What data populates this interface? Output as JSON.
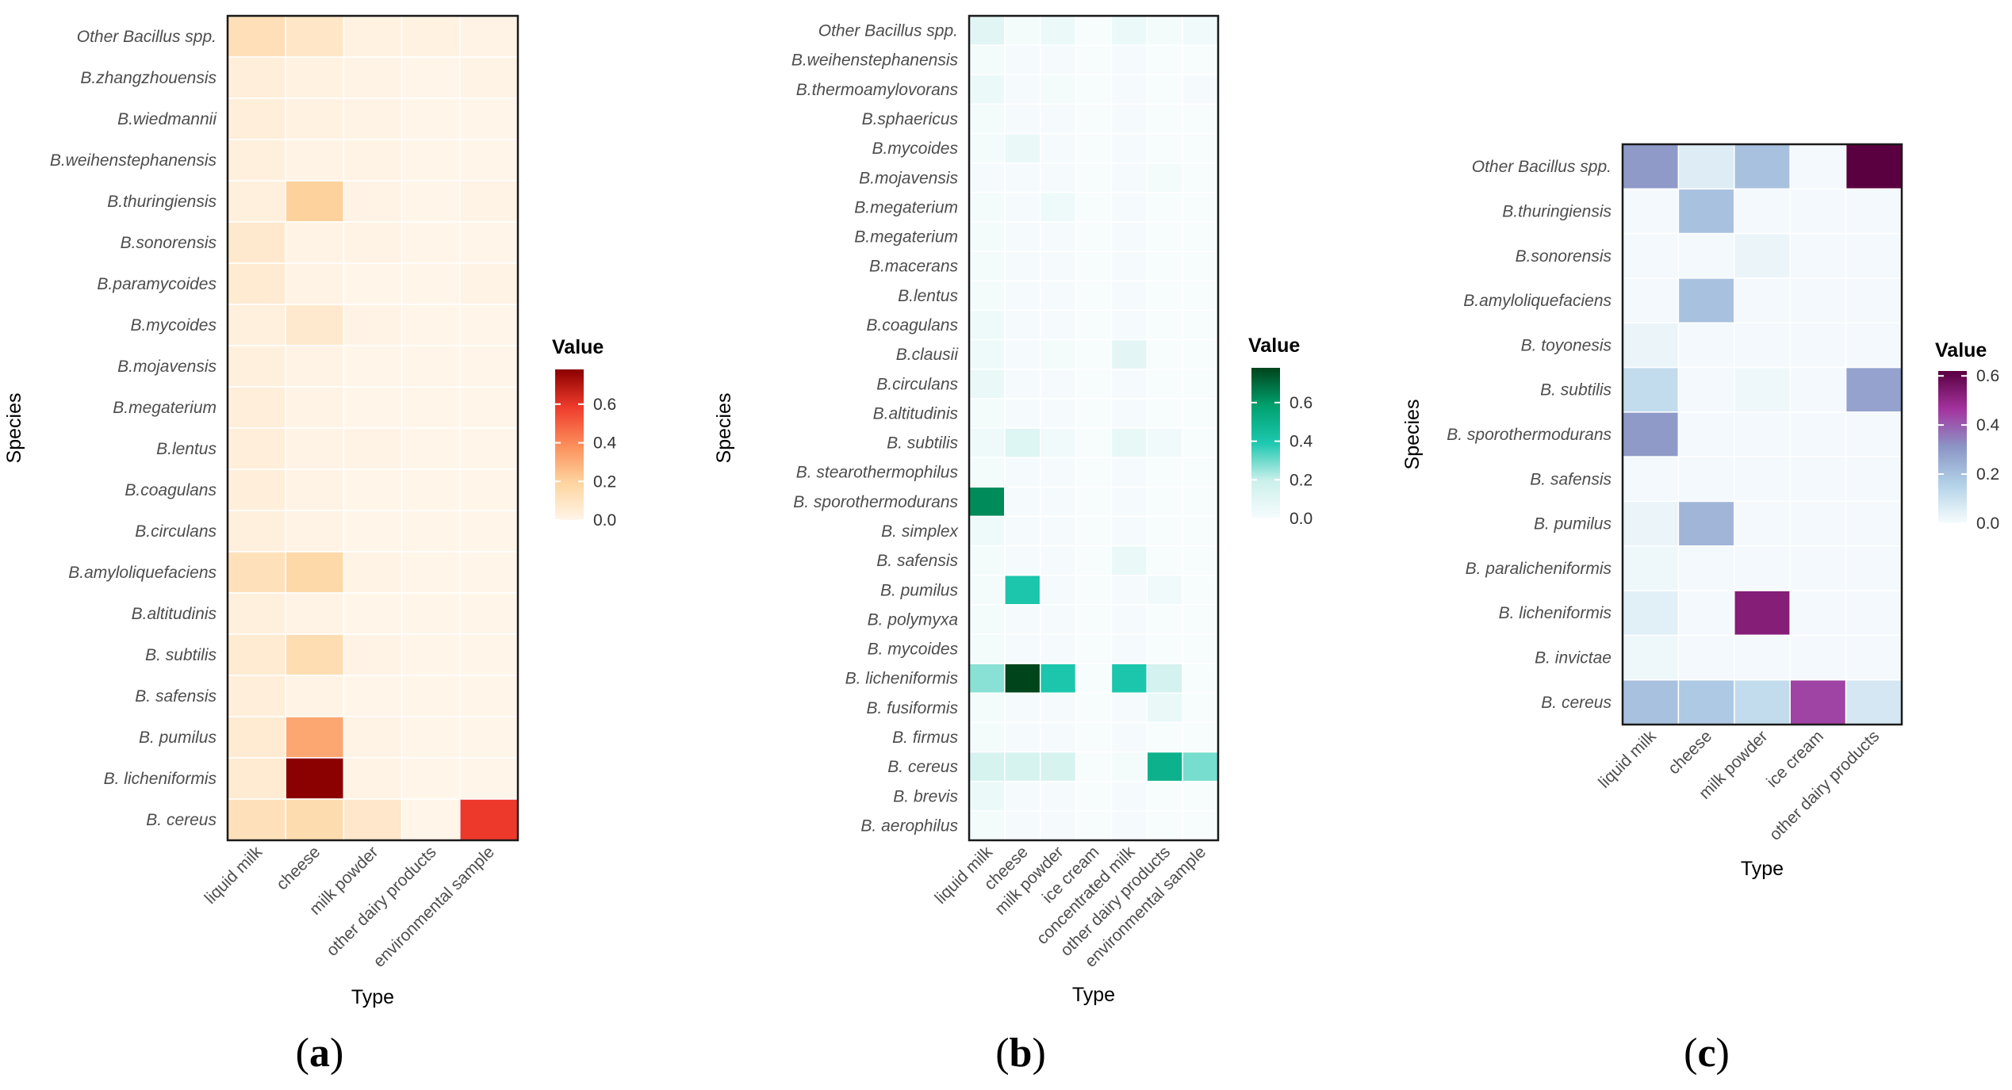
{
  "chart_data": [
    {
      "type": "heatmap",
      "panel_label": {
        "open": "(",
        "letter": "a",
        "close": ")"
      },
      "xlabel": "Type",
      "ylabel": "Species",
      "legend_title": "Value",
      "colorscale": [
        "#fff5e9",
        "#fdd49e",
        "#fc8d59",
        "#ef3b2c",
        "#8b0000"
      ],
      "value_range": [
        0,
        0.78
      ],
      "legend_ticks": [
        0.0,
        0.2,
        0.4,
        0.6
      ],
      "legend_tick_labels": [
        "0.0",
        "0.2",
        "0.4",
        "0.6"
      ],
      "x": [
        "liquid milk",
        "cheese",
        "milk powder",
        "other dairy products",
        "environmental sample"
      ],
      "y": [
        "Other Bacillus spp.",
        "B.zhangzhouensis",
        "B.wiedmannii",
        "B.weihenstephanensis",
        "B.thuringiensis",
        "B.sonorensis",
        "B.paramycoides",
        "B.mycoides",
        "B.mojavensis",
        "B.megaterium",
        "B.lentus",
        "B.coagulans",
        "B.circulans",
        "B.amyloliquefaciens",
        "B.altitudinis",
        "B. subtilis",
        "B. safensis",
        "B. pumilus",
        "B. licheniformis",
        "B. cereus"
      ],
      "values": [
        [
          0.13,
          0.09,
          0.02,
          0.02,
          0.01
        ],
        [
          0.04,
          0.02,
          0.01,
          0.0,
          0.01
        ],
        [
          0.04,
          0.02,
          0.01,
          0.0,
          0.0
        ],
        [
          0.03,
          0.01,
          0.01,
          0.0,
          0.0
        ],
        [
          0.03,
          0.2,
          0.01,
          0.0,
          0.01
        ],
        [
          0.07,
          0.01,
          0.01,
          0.0,
          0.0
        ],
        [
          0.06,
          0.01,
          0.0,
          0.0,
          0.01
        ],
        [
          0.03,
          0.07,
          0.01,
          0.0,
          0.0
        ],
        [
          0.03,
          0.01,
          0.0,
          0.0,
          0.0
        ],
        [
          0.04,
          0.01,
          0.0,
          0.0,
          0.0
        ],
        [
          0.04,
          0.01,
          0.01,
          0.0,
          0.0
        ],
        [
          0.04,
          0.01,
          0.0,
          0.0,
          0.0
        ],
        [
          0.03,
          0.01,
          0.0,
          0.0,
          0.0
        ],
        [
          0.12,
          0.17,
          0.01,
          0.0,
          0.0
        ],
        [
          0.03,
          0.01,
          0.0,
          0.0,
          0.0
        ],
        [
          0.06,
          0.14,
          0.01,
          0.0,
          0.0
        ],
        [
          0.04,
          0.01,
          0.0,
          0.0,
          0.0
        ],
        [
          0.06,
          0.32,
          0.01,
          0.0,
          0.0
        ],
        [
          0.06,
          0.78,
          0.01,
          0.0,
          0.0
        ],
        [
          0.12,
          0.15,
          0.08,
          0.0,
          0.59
        ]
      ]
    },
    {
      "type": "heatmap",
      "panel_label": {
        "open": "(",
        "letter": "b",
        "close": ")"
      },
      "xlabel": "Type",
      "ylabel": "Species",
      "legend_title": "Value",
      "colorscale": [
        "#f7fcfd",
        "#ccf0ec",
        "#1ec8b0",
        "#00a06e",
        "#00441b"
      ],
      "value_range": [
        0,
        0.78
      ],
      "legend_ticks": [
        0.0,
        0.2,
        0.4,
        0.6
      ],
      "legend_tick_labels": [
        "0.0",
        "0.2",
        "0.4",
        "0.6"
      ],
      "x": [
        "liquid milk",
        "cheese",
        "milk powder",
        "ice cream",
        "concentrated milk",
        "other dairy products",
        "environmental sample"
      ],
      "y": [
        "Other Bacillus spp.",
        "B.weihenstephanensis",
        "B.thermoamylovorans",
        "B.sphaericus",
        "B.mycoides",
        "B.mojavensis",
        "B.megaterium",
        "B.megaterium",
        "B.macerans",
        "B.lentus",
        "B.coagulans",
        "B.clausii",
        "B.circulans",
        "B.altitudinis",
        "B. subtilis",
        "B. stearothermophilus",
        "B. sporothermodurans",
        "B. simplex",
        "B. safensis",
        "B. pumilus",
        "B. polymyxa",
        "B. mycoides",
        "B. licheniformis",
        "B. fusiformis",
        "B. firmus",
        "B. cereus",
        "B. brevis",
        "B. aerophilus"
      ],
      "values": [
        [
          0.1,
          0.02,
          0.05,
          0.0,
          0.05,
          0.02,
          0.03
        ],
        [
          0.02,
          0.01,
          0.01,
          0.0,
          0.01,
          0.0,
          0.0
        ],
        [
          0.05,
          0.01,
          0.02,
          0.0,
          0.01,
          0.0,
          0.01
        ],
        [
          0.02,
          0.01,
          0.01,
          0.0,
          0.01,
          0.0,
          0.0
        ],
        [
          0.02,
          0.06,
          0.01,
          0.0,
          0.01,
          0.0,
          0.0
        ],
        [
          0.01,
          0.01,
          0.01,
          0.0,
          0.01,
          0.02,
          0.0
        ],
        [
          0.02,
          0.01,
          0.04,
          0.0,
          0.01,
          0.0,
          0.0
        ],
        [
          0.02,
          0.01,
          0.01,
          0.0,
          0.01,
          0.0,
          0.0
        ],
        [
          0.02,
          0.01,
          0.01,
          0.0,
          0.01,
          0.0,
          0.0
        ],
        [
          0.02,
          0.01,
          0.01,
          0.0,
          0.01,
          0.0,
          0.0
        ],
        [
          0.04,
          0.01,
          0.01,
          0.0,
          0.01,
          0.0,
          0.0
        ],
        [
          0.04,
          0.01,
          0.02,
          0.0,
          0.09,
          0.0,
          0.0
        ],
        [
          0.06,
          0.01,
          0.01,
          0.0,
          0.01,
          0.0,
          0.0
        ],
        [
          0.02,
          0.01,
          0.01,
          0.0,
          0.01,
          0.0,
          0.0
        ],
        [
          0.04,
          0.12,
          0.03,
          0.0,
          0.07,
          0.03,
          0.0
        ],
        [
          0.02,
          0.01,
          0.01,
          0.0,
          0.01,
          0.0,
          0.0
        ],
        [
          0.63,
          0.01,
          0.01,
          0.0,
          0.01,
          0.0,
          0.0
        ],
        [
          0.04,
          0.01,
          0.01,
          0.0,
          0.01,
          0.0,
          0.0
        ],
        [
          0.02,
          0.01,
          0.01,
          0.0,
          0.06,
          0.0,
          0.0
        ],
        [
          0.02,
          0.4,
          0.01,
          0.0,
          0.01,
          0.03,
          0.0
        ],
        [
          0.02,
          0.01,
          0.01,
          0.0,
          0.01,
          0.0,
          0.0
        ],
        [
          0.02,
          0.01,
          0.01,
          0.0,
          0.01,
          0.0,
          0.0
        ],
        [
          0.27,
          0.78,
          0.4,
          0.0,
          0.4,
          0.16,
          0.0
        ],
        [
          0.02,
          0.01,
          0.01,
          0.0,
          0.01,
          0.06,
          0.0
        ],
        [
          0.02,
          0.01,
          0.01,
          0.0,
          0.01,
          0.0,
          0.0
        ],
        [
          0.15,
          0.15,
          0.15,
          0.0,
          0.02,
          0.5,
          0.29
        ],
        [
          0.05,
          0.01,
          0.01,
          0.0,
          0.01,
          0.0,
          0.0
        ],
        [
          0.02,
          0.01,
          0.01,
          0.0,
          0.01,
          0.0,
          0.0
        ]
      ]
    },
    {
      "type": "heatmap",
      "panel_label": {
        "open": "(",
        "letter": "c",
        "close": ")"
      },
      "xlabel": "Type",
      "ylabel": "Species",
      "legend_title": "Value",
      "colorscale": [
        "#f7fcfd",
        "#b3d3e8",
        "#8c96c6",
        "#a3339e",
        "#5a0040"
      ],
      "value_range": [
        0,
        0.62
      ],
      "legend_ticks": [
        0.0,
        0.2,
        0.4,
        0.6
      ],
      "legend_tick_labels": [
        "0.0",
        "0.2",
        "0.4",
        "0.6"
      ],
      "x": [
        "liquid milk",
        "cheese",
        "milk powder",
        "ice cream",
        "other dairy products"
      ],
      "y": [
        "Other Bacillus spp.",
        "B.thuringiensis",
        "B.sonorensis",
        "B.amyloliquefaciens",
        "B. toyonesis",
        "B. subtilis",
        "B. sporothermodurans",
        "B. safensis",
        "B. pumilus",
        "B. paralicheniformis",
        "B. licheniformis",
        "B. invictae",
        "B. cereus"
      ],
      "values": [
        [
          0.3,
          0.06,
          0.2,
          0.01,
          0.62
        ],
        [
          0.01,
          0.2,
          0.01,
          0.01,
          0.01
        ],
        [
          0.01,
          0.01,
          0.03,
          0.01,
          0.01
        ],
        [
          0.01,
          0.2,
          0.01,
          0.01,
          0.01
        ],
        [
          0.03,
          0.01,
          0.01,
          0.01,
          0.01
        ],
        [
          0.12,
          0.01,
          0.02,
          0.01,
          0.28
        ],
        [
          0.3,
          0.01,
          0.01,
          0.01,
          0.01
        ],
        [
          0.01,
          0.01,
          0.01,
          0.01,
          0.01
        ],
        [
          0.03,
          0.23,
          0.01,
          0.01,
          0.01
        ],
        [
          0.02,
          0.01,
          0.01,
          0.01,
          0.01
        ],
        [
          0.05,
          0.01,
          0.53,
          0.01,
          0.01
        ],
        [
          0.02,
          0.01,
          0.01,
          0.01,
          0.01
        ],
        [
          0.2,
          0.18,
          0.12,
          0.44,
          0.08
        ]
      ]
    }
  ]
}
